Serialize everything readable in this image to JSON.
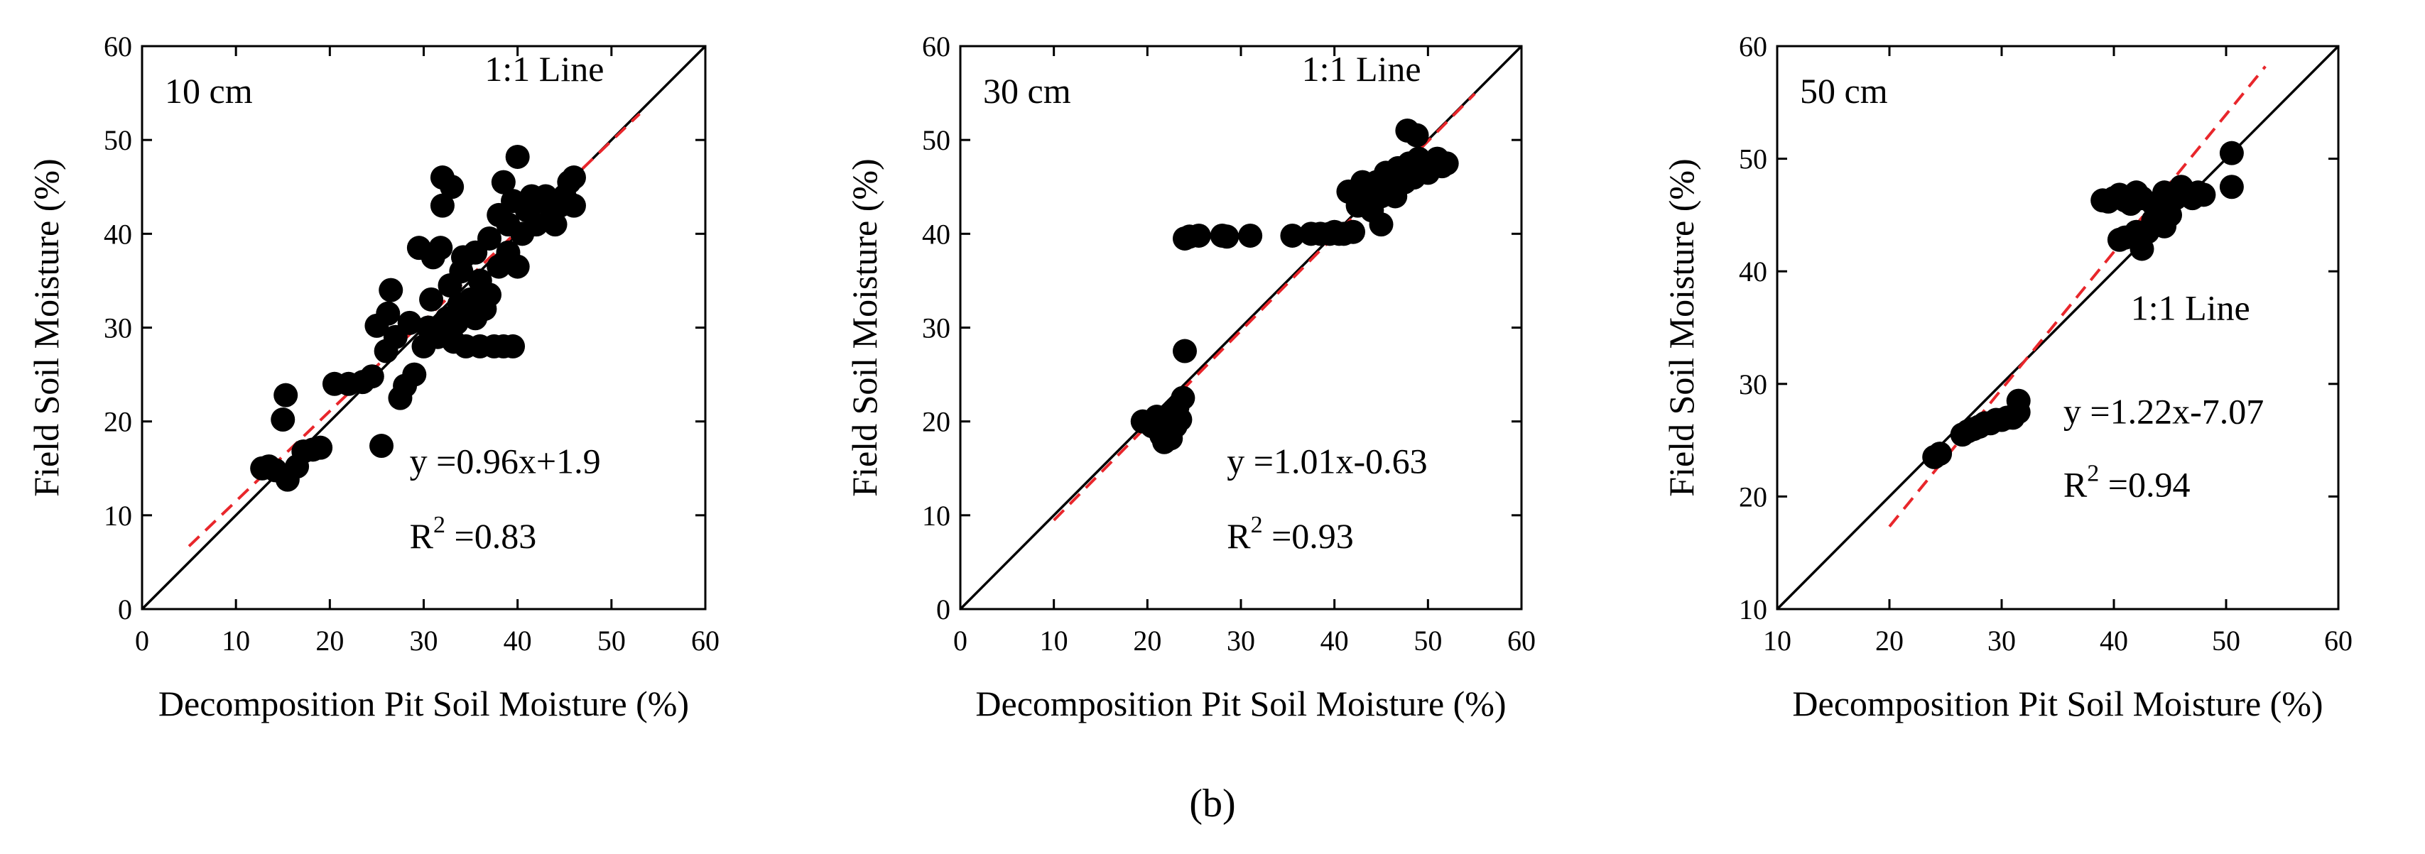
{
  "figure_caption": "(b)",
  "chart_data": [
    {
      "type": "scatter",
      "panel_label": "10 cm",
      "xlabel": "Decomposition Pit Soil Moisture (%)",
      "ylabel": "Field Soil Moisture (%)",
      "xlim": [
        0,
        60
      ],
      "ylim": [
        0,
        60
      ],
      "xticks": [
        "0",
        "10",
        "20",
        "30",
        "40",
        "50",
        "60"
      ],
      "yticks": [
        "0",
        "10",
        "20",
        "30",
        "40",
        "50",
        "60"
      ],
      "one_to_one_label": "1:1 Line",
      "one_to_one_label_anchor": [
        36.5,
        56.3
      ],
      "equation": "y =0.96x+1.9",
      "r2_prefix": "R",
      "r2_sup": "2",
      "r2_value": " =0.83",
      "fit": {
        "slope": 0.96,
        "intercept": 1.9,
        "x_range": [
          5,
          53
        ],
        "color": "#e8262b"
      },
      "equation_anchor": [
        28.5,
        14.5
      ],
      "r2_anchor": [
        28.5,
        6.5
      ],
      "points": [
        [
          12.8,
          15.0
        ],
        [
          13.5,
          15.2
        ],
        [
          14.2,
          14.8
        ],
        [
          15.0,
          20.2
        ],
        [
          15.3,
          22.8
        ],
        [
          15.5,
          13.8
        ],
        [
          16.5,
          15.2
        ],
        [
          17.2,
          16.8
        ],
        [
          18.2,
          17.0
        ],
        [
          19.0,
          17.2
        ],
        [
          20.5,
          24.0
        ],
        [
          22.0,
          24.0
        ],
        [
          23.5,
          24.2
        ],
        [
          24.5,
          24.8
        ],
        [
          25.0,
          30.2
        ],
        [
          25.5,
          17.4
        ],
        [
          26.0,
          27.5
        ],
        [
          26.2,
          31.5
        ],
        [
          26.5,
          34.0
        ],
        [
          27.0,
          29.0
        ],
        [
          27.5,
          22.5
        ],
        [
          28.0,
          23.8
        ],
        [
          28.5,
          30.5
        ],
        [
          29.0,
          25.0
        ],
        [
          29.5,
          38.5
        ],
        [
          30.0,
          28.0
        ],
        [
          30.5,
          30.0
        ],
        [
          30.8,
          33.0
        ],
        [
          31.0,
          37.5
        ],
        [
          31.5,
          29.0
        ],
        [
          31.8,
          38.5
        ],
        [
          32.0,
          43.0
        ],
        [
          32.0,
          46.0
        ],
        [
          32.5,
          31.0
        ],
        [
          32.8,
          34.5
        ],
        [
          33.0,
          45.0
        ],
        [
          33.2,
          28.5
        ],
        [
          33.5,
          30.5
        ],
        [
          33.8,
          32.5
        ],
        [
          34.0,
          36.0
        ],
        [
          34.2,
          37.5
        ],
        [
          34.5,
          28.0
        ],
        [
          35.0,
          33.0
        ],
        [
          35.5,
          31.0
        ],
        [
          35.5,
          38.0
        ],
        [
          36.0,
          35.0
        ],
        [
          36.0,
          28.0
        ],
        [
          36.5,
          32.0
        ],
        [
          37.0,
          39.5
        ],
        [
          37.0,
          33.5
        ],
        [
          37.5,
          28.0
        ],
        [
          38.0,
          36.5
        ],
        [
          38.0,
          42.0
        ],
        [
          38.5,
          45.5
        ],
        [
          38.5,
          28.0
        ],
        [
          39.0,
          38.0
        ],
        [
          39.0,
          41.0
        ],
        [
          39.5,
          28.0
        ],
        [
          39.5,
          43.5
        ],
        [
          40.0,
          36.5
        ],
        [
          40.0,
          48.2
        ],
        [
          40.5,
          40.0
        ],
        [
          41.0,
          42.5
        ],
        [
          41.5,
          44.0
        ],
        [
          42.0,
          41.0
        ],
        [
          42.5,
          43.5
        ],
        [
          43.0,
          44.0
        ],
        [
          43.5,
          41.5
        ],
        [
          44.0,
          41.0
        ],
        [
          44.5,
          43.0
        ],
        [
          45.0,
          44.0
        ],
        [
          45.5,
          45.5
        ],
        [
          46.0,
          43.0
        ],
        [
          46.0,
          46.0
        ]
      ]
    },
    {
      "type": "scatter",
      "panel_label": "30 cm",
      "xlabel": "Decomposition Pit Soil Moisture (%)",
      "ylabel": "Field Soil Moisture (%)",
      "xlim": [
        0,
        60
      ],
      "ylim": [
        0,
        60
      ],
      "xticks": [
        "0",
        "10",
        "20",
        "30",
        "40",
        "50",
        "60"
      ],
      "yticks": [
        "0",
        "10",
        "20",
        "30",
        "40",
        "50",
        "60"
      ],
      "one_to_one_label": "1:1 Line",
      "one_to_one_label_anchor": [
        36.5,
        56.3
      ],
      "equation": "y =1.01x-0.63",
      "r2_prefix": "R",
      "r2_sup": "2",
      "r2_value": " =0.93",
      "fit": {
        "slope": 1.01,
        "intercept": -0.63,
        "x_range": [
          10,
          55
        ],
        "color": "#e8262b"
      },
      "equation_anchor": [
        28.5,
        14.5
      ],
      "r2_anchor": [
        28.5,
        6.5
      ],
      "points": [
        [
          19.5,
          20.0
        ],
        [
          20.5,
          19.5
        ],
        [
          21.0,
          20.5
        ],
        [
          21.5,
          18.5
        ],
        [
          21.8,
          17.8
        ],
        [
          22.0,
          19.0
        ],
        [
          22.3,
          20.0
        ],
        [
          22.5,
          18.2
        ],
        [
          22.8,
          21.0
        ],
        [
          23.0,
          19.5
        ],
        [
          23.2,
          21.5
        ],
        [
          23.5,
          20.2
        ],
        [
          23.8,
          22.5
        ],
        [
          24.0,
          27.5
        ],
        [
          24.0,
          39.5
        ],
        [
          24.5,
          39.7
        ],
        [
          25.5,
          39.8
        ],
        [
          28.0,
          39.8
        ],
        [
          28.5,
          39.7
        ],
        [
          31.0,
          39.8
        ],
        [
          35.5,
          39.8
        ],
        [
          37.5,
          40.0
        ],
        [
          38.5,
          40.0
        ],
        [
          39.5,
          40.0
        ],
        [
          40.0,
          40.2
        ],
        [
          40.5,
          40.0
        ],
        [
          41.0,
          40.0
        ],
        [
          41.5,
          44.5
        ],
        [
          42.0,
          40.2
        ],
        [
          42.5,
          43.0
        ],
        [
          43.0,
          45.5
        ],
        [
          43.5,
          44.0
        ],
        [
          44.0,
          42.5
        ],
        [
          44.5,
          45.5
        ],
        [
          45.0,
          44.0
        ],
        [
          45.0,
          41.0
        ],
        [
          45.5,
          46.5
        ],
        [
          46.0,
          45.0
        ],
        [
          46.5,
          44.0
        ],
        [
          46.8,
          47.0
        ],
        [
          47.0,
          46.0
        ],
        [
          47.5,
          45.5
        ],
        [
          47.8,
          51.0
        ],
        [
          48.0,
          47.5
        ],
        [
          48.5,
          46.0
        ],
        [
          48.8,
          50.5
        ],
        [
          49.0,
          48.0
        ],
        [
          49.5,
          47.0
        ],
        [
          50.0,
          46.5
        ],
        [
          50.5,
          47.5
        ],
        [
          51.0,
          48.0
        ],
        [
          51.5,
          47.2
        ],
        [
          52.0,
          47.5
        ]
      ]
    },
    {
      "type": "scatter",
      "panel_label": "50 cm",
      "xlabel": "Decomposition Pit Soil Moisture (%)",
      "ylabel": "Field Soil Moisture (%)",
      "xlim": [
        10,
        60
      ],
      "ylim": [
        10,
        60
      ],
      "xticks": [
        "10",
        "20",
        "30",
        "40",
        "50",
        "60"
      ],
      "yticks": [
        "10",
        "20",
        "30",
        "40",
        "50",
        "60"
      ],
      "one_to_one_label": "1:1 Line",
      "one_to_one_label_anchor": [
        41.5,
        35.7
      ],
      "equation": "y =1.22x-7.07",
      "r2_prefix": "R",
      "r2_sup": "2",
      "r2_value": " =0.94",
      "fit": {
        "slope": 1.22,
        "intercept": -7.07,
        "x_range": [
          20,
          53.5
        ],
        "color": "#e8262b"
      },
      "equation_anchor": [
        35.5,
        26.5
      ],
      "r2_anchor": [
        35.5,
        20.0
      ],
      "points": [
        [
          24.0,
          23.5
        ],
        [
          24.5,
          23.8
        ],
        [
          26.5,
          25.5
        ],
        [
          27.0,
          25.8
        ],
        [
          27.5,
          26.0
        ],
        [
          28.0,
          26.2
        ],
        [
          28.5,
          26.5
        ],
        [
          29.0,
          26.5
        ],
        [
          29.5,
          26.8
        ],
        [
          30.0,
          26.8
        ],
        [
          30.5,
          27.0
        ],
        [
          31.0,
          27.0
        ],
        [
          31.5,
          27.5
        ],
        [
          31.5,
          28.5
        ],
        [
          39.0,
          46.3
        ],
        [
          39.5,
          46.2
        ],
        [
          40.0,
          46.5
        ],
        [
          40.5,
          46.8
        ],
        [
          40.5,
          42.8
        ],
        [
          41.0,
          46.3
        ],
        [
          41.0,
          43.0
        ],
        [
          41.5,
          46.0
        ],
        [
          42.0,
          47.0
        ],
        [
          42.0,
          43.5
        ],
        [
          42.5,
          42.0
        ],
        [
          42.5,
          46.5
        ],
        [
          43.0,
          43.5
        ],
        [
          43.5,
          44.5
        ],
        [
          43.5,
          46.0
        ],
        [
          44.0,
          45.5
        ],
        [
          44.5,
          47.0
        ],
        [
          44.5,
          44.0
        ],
        [
          45.0,
          46.0
        ],
        [
          45.0,
          45.0
        ],
        [
          45.5,
          46.5
        ],
        [
          46.0,
          47.5
        ],
        [
          46.5,
          47.0
        ],
        [
          47.0,
          46.5
        ],
        [
          47.5,
          47.0
        ],
        [
          48.0,
          46.8
        ],
        [
          50.5,
          50.5
        ],
        [
          50.5,
          47.5
        ]
      ]
    }
  ]
}
